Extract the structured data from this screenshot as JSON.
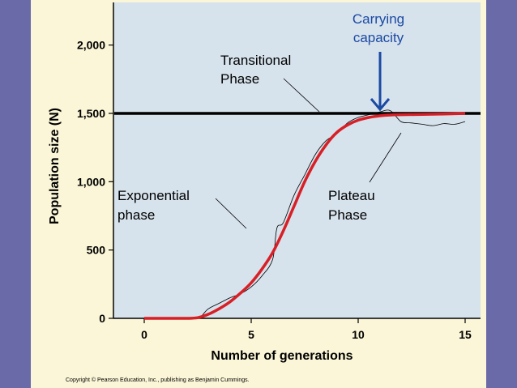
{
  "chart_data": {
    "type": "line",
    "ylabel": "Population size (N)",
    "xlabel": "Number of generations",
    "xlim": [
      0,
      17.2
    ],
    "ylim": [
      0,
      2250
    ],
    "x_ticks": [
      0,
      5,
      10,
      15
    ],
    "y_ticks": [
      0,
      500,
      1000,
      1500,
      2000
    ],
    "y_tick_labels": [
      "0",
      "500",
      "1,000",
      "1,500",
      "2,000"
    ],
    "carrying_capacity": 1500,
    "series": [
      {
        "color": "#d81f26",
        "x": [
          0,
          1,
          2,
          2.5,
          3,
          3.5,
          4,
          4.5,
          5,
          5.5,
          6,
          6.5,
          7,
          7.5,
          8,
          8.5,
          9,
          9.5,
          10,
          10.5,
          11,
          11.5,
          12,
          13,
          14,
          15
        ],
        "y": [
          0,
          0,
          0,
          5,
          30,
          70,
          120,
          185,
          260,
          360,
          480,
          640,
          820,
          1000,
          1150,
          1270,
          1360,
          1415,
          1450,
          1470,
          1482,
          1488,
          1490,
          1492,
          1495,
          1500
        ]
      }
    ],
    "observed_curve": {
      "x": [
        2.7,
        3,
        3.5,
        4,
        4.5,
        5,
        5.5,
        6,
        6.2,
        6.5,
        7,
        7.5,
        8,
        8.5,
        9,
        9.5,
        10,
        10.5,
        11,
        11.5,
        12,
        12.5,
        13,
        13.5,
        14,
        14.5,
        15
      ],
      "y": [
        20,
        70,
        110,
        150,
        180,
        230,
        310,
        430,
        660,
        700,
        900,
        1050,
        1200,
        1300,
        1350,
        1430,
        1470,
        1490,
        1510,
        1520,
        1440,
        1430,
        1420,
        1410,
        1425,
        1420,
        1440
      ]
    },
    "annotations": [
      {
        "id": "carrying",
        "lines": [
          "Carrying",
          "capacity"
        ],
        "color": "#1b4aa3"
      },
      {
        "id": "transitional",
        "lines": [
          "Transitional",
          "Phase"
        ],
        "color": "#000000"
      },
      {
        "id": "exponential",
        "lines": [
          "Exponential",
          "phase"
        ],
        "color": "#000000"
      },
      {
        "id": "plateau",
        "lines": [
          "Plateau",
          "Phase"
        ],
        "color": "#000000"
      }
    ],
    "plot_background": "#d6e2ec",
    "grid": false
  },
  "copyright": "Copyright © Pearson Education, Inc., publishing as Benjamin Cummings."
}
